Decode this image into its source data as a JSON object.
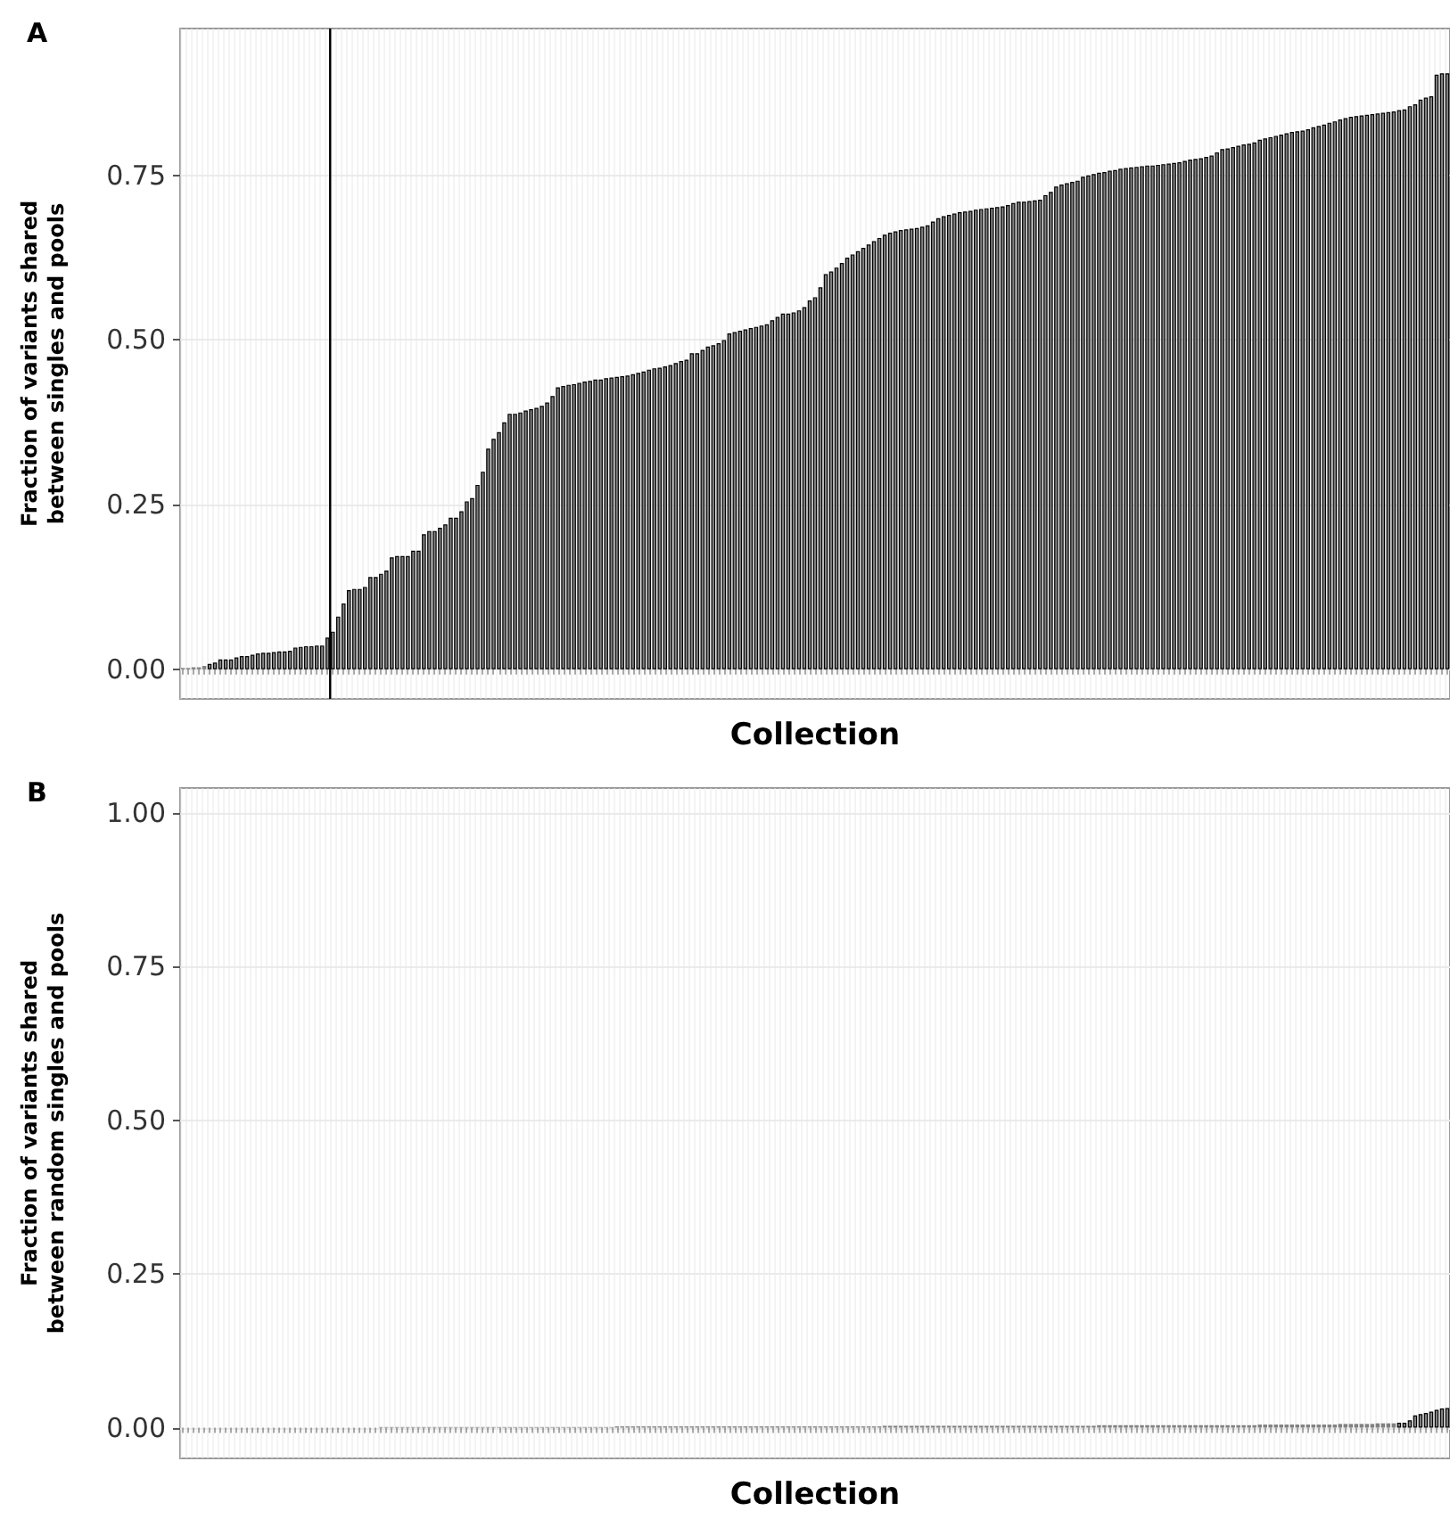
{
  "chart_data": [
    {
      "type": "bar",
      "title": "A",
      "xlabel": "Collection",
      "ylabel": "Fraction of variants shared\nbetween singles and pools",
      "categories": [
        null,
        null,
        null,
        null,
        null,
        null,
        null,
        null,
        null,
        null,
        null,
        null,
        null,
        null,
        null,
        null,
        null,
        null,
        null,
        null,
        null,
        null,
        null,
        null,
        null,
        null,
        null,
        null,
        null,
        null,
        null,
        null,
        null,
        null,
        null,
        null,
        null,
        null,
        null,
        null,
        null,
        null,
        null,
        null,
        null,
        null,
        null,
        null,
        null,
        null,
        null,
        null,
        null,
        null,
        null,
        null,
        null,
        null,
        null,
        null,
        null,
        null,
        null,
        null,
        null,
        null,
        null,
        null,
        null,
        null,
        null,
        null,
        null,
        null,
        null,
        null,
        null,
        null,
        null,
        null,
        null,
        null,
        null,
        null,
        null,
        null,
        null,
        null,
        null,
        null,
        null,
        null,
        null,
        null,
        null,
        null,
        null,
        null,
        null,
        null,
        null,
        null,
        null,
        null,
        null,
        null,
        null,
        null,
        null,
        null,
        null,
        null,
        null,
        null,
        null,
        null,
        null,
        null,
        null,
        null,
        null,
        null,
        null,
        null,
        null,
        null,
        null,
        null,
        null,
        null,
        null,
        null,
        null,
        null,
        null,
        null,
        null,
        null,
        null,
        null,
        null,
        null,
        null,
        null,
        null,
        null,
        null,
        null,
        null,
        null,
        null,
        null,
        null,
        null,
        null,
        null,
        null,
        null,
        null,
        null,
        null,
        null,
        null,
        null,
        null,
        null,
        null,
        null,
        null,
        null,
        null,
        null,
        null,
        null,
        null,
        null,
        null,
        null,
        null,
        null,
        null,
        null,
        null,
        null,
        null,
        null,
        null,
        null,
        null,
        null,
        null,
        null,
        null,
        null,
        null,
        null,
        null,
        null,
        null,
        null,
        null,
        null,
        null,
        null,
        null,
        null,
        null,
        null,
        null,
        null,
        null,
        null,
        null,
        null,
        null,
        null,
        null,
        null,
        null,
        null,
        null,
        null,
        null,
        null,
        null,
        null,
        null,
        null,
        null,
        null,
        null,
        null,
        null,
        null,
        null,
        null,
        null
      ],
      "values": [
        0.002,
        0.002,
        0.003,
        0.003,
        0.005,
        0.008,
        0.01,
        0.015,
        0.015,
        0.015,
        0.018,
        0.02,
        0.02,
        0.022,
        0.024,
        0.025,
        0.025,
        0.026,
        0.027,
        0.027,
        0.028,
        0.033,
        0.034,
        0.035,
        0.035,
        0.036,
        0.036,
        0.048,
        0.057,
        0.08,
        0.1,
        0.12,
        0.122,
        0.122,
        0.125,
        0.14,
        0.14,
        0.145,
        0.15,
        0.17,
        0.172,
        0.172,
        0.172,
        0.18,
        0.18,
        0.205,
        0.21,
        0.21,
        0.215,
        0.22,
        0.23,
        0.23,
        0.24,
        0.255,
        0.26,
        0.28,
        0.3,
        0.335,
        0.35,
        0.36,
        0.375,
        0.388,
        0.388,
        0.39,
        0.393,
        0.395,
        0.397,
        0.4,
        0.405,
        0.415,
        0.428,
        0.43,
        0.432,
        0.433,
        0.435,
        0.437,
        0.438,
        0.44,
        0.44,
        0.442,
        0.443,
        0.444,
        0.445,
        0.446,
        0.448,
        0.45,
        0.452,
        0.455,
        0.457,
        0.458,
        0.46,
        0.462,
        0.465,
        0.468,
        0.47,
        0.48,
        0.48,
        0.485,
        0.49,
        0.492,
        0.495,
        0.5,
        0.51,
        0.512,
        0.514,
        0.516,
        0.518,
        0.52,
        0.522,
        0.524,
        0.53,
        0.535,
        0.54,
        0.54,
        0.542,
        0.545,
        0.55,
        0.56,
        0.565,
        0.58,
        0.6,
        0.604,
        0.61,
        0.617,
        0.625,
        0.63,
        0.635,
        0.64,
        0.645,
        0.65,
        0.655,
        0.66,
        0.663,
        0.665,
        0.667,
        0.668,
        0.669,
        0.67,
        0.672,
        0.674,
        0.68,
        0.685,
        0.688,
        0.69,
        0.692,
        0.694,
        0.695,
        0.696,
        0.698,
        0.699,
        0.7,
        0.701,
        0.702,
        0.703,
        0.705,
        0.708,
        0.71,
        0.71,
        0.711,
        0.712,
        0.713,
        0.72,
        0.725,
        0.733,
        0.736,
        0.738,
        0.74,
        0.742,
        0.748,
        0.75,
        0.752,
        0.754,
        0.755,
        0.757,
        0.758,
        0.76,
        0.761,
        0.762,
        0.763,
        0.764,
        0.765,
        0.765,
        0.766,
        0.767,
        0.768,
        0.769,
        0.77,
        0.772,
        0.774,
        0.775,
        0.776,
        0.778,
        0.78,
        0.785,
        0.79,
        0.791,
        0.793,
        0.795,
        0.797,
        0.798,
        0.8,
        0.804,
        0.806,
        0.808,
        0.81,
        0.812,
        0.814,
        0.816,
        0.817,
        0.818,
        0.82,
        0.823,
        0.825,
        0.827,
        0.83,
        0.832,
        0.835,
        0.837,
        0.839,
        0.84,
        0.841,
        0.842,
        0.843,
        0.844,
        0.845,
        0.846,
        0.847,
        0.849,
        0.85,
        0.855,
        0.858,
        0.865,
        0.868,
        0.87,
        0.903,
        0.905,
        0.905
      ],
      "color": "#808080",
      "ylim": [
        -0.045,
        0.973
      ],
      "yticks": [
        {
          "value": 0,
          "label": "0.00"
        },
        {
          "value": 0.25,
          "label": "0.25"
        },
        {
          "value": 0.5,
          "label": "0.50"
        },
        {
          "value": 0.75,
          "label": "0.75"
        }
      ],
      "grid": true,
      "tick_labels": "y"
    },
    {
      "type": "bar",
      "title": "B",
      "xlabel": "Collection",
      "ylabel": "Fraction of variants shared\nbetween random singles and pools",
      "categories": [
        null,
        null,
        null,
        null,
        null,
        null,
        null,
        null,
        null,
        null,
        null,
        null,
        null,
        null,
        null,
        null,
        null,
        null,
        null,
        null,
        null,
        null,
        null,
        null,
        null,
        null,
        null,
        null,
        null,
        null,
        null,
        null,
        null,
        null,
        null,
        null,
        null,
        null,
        null,
        null,
        null,
        null,
        null,
        null,
        null,
        null,
        null,
        null,
        null,
        null,
        null,
        null,
        null,
        null,
        null,
        null,
        null,
        null,
        null,
        null,
        null,
        null,
        null,
        null,
        null,
        null,
        null,
        null,
        null,
        null,
        null,
        null,
        null,
        null,
        null,
        null,
        null,
        null,
        null,
        null,
        null,
        null,
        null,
        null,
        null,
        null,
        null,
        null,
        null,
        null,
        null,
        null,
        null,
        null,
        null,
        null,
        null,
        null,
        null,
        null,
        null,
        null,
        null,
        null,
        null,
        null,
        null,
        null,
        null,
        null,
        null,
        null,
        null,
        null,
        null,
        null,
        null,
        null,
        null,
        null,
        null,
        null,
        null,
        null,
        null,
        null,
        null,
        null,
        null,
        null,
        null,
        null,
        null,
        null,
        null,
        null,
        null,
        null,
        null,
        null,
        null,
        null,
        null,
        null,
        null,
        null,
        null,
        null,
        null,
        null,
        null,
        null,
        null,
        null,
        null,
        null,
        null,
        null,
        null,
        null,
        null,
        null,
        null,
        null,
        null,
        null,
        null,
        null,
        null,
        null,
        null,
        null,
        null,
        null,
        null,
        null,
        null,
        null,
        null,
        null,
        null,
        null,
        null,
        null,
        null,
        null,
        null,
        null,
        null,
        null,
        null,
        null,
        null,
        null,
        null,
        null,
        null,
        null,
        null,
        null,
        null,
        null,
        null,
        null,
        null,
        null,
        null,
        null,
        null,
        null,
        null,
        null,
        null,
        null,
        null,
        null,
        null,
        null,
        null,
        null,
        null,
        null,
        null,
        null,
        null,
        null,
        null,
        null,
        null,
        null,
        null,
        null,
        null,
        null,
        null,
        null,
        null
      ],
      "values": [
        0,
        0,
        0,
        0,
        0,
        0,
        0,
        0,
        0,
        0,
        0,
        0,
        0,
        0,
        0,
        0,
        0,
        0,
        0,
        0,
        0,
        0,
        0,
        0,
        0,
        0,
        0,
        0,
        0,
        0,
        0,
        0,
        0,
        0,
        0,
        0,
        0,
        0.001,
        0.001,
        0.001,
        0.001,
        0.001,
        0.001,
        0.001,
        0.001,
        0.001,
        0.001,
        0.001,
        0.001,
        0.001,
        0.001,
        0.001,
        0.001,
        0.001,
        0.001,
        0.001,
        0.001,
        0.001,
        0.001,
        0.001,
        0.001,
        0.001,
        0.001,
        0.001,
        0.001,
        0.001,
        0.001,
        0.001,
        0.001,
        0.001,
        0.001,
        0.001,
        0.001,
        0.001,
        0.001,
        0.001,
        0.001,
        0.001,
        0.001,
        0.001,
        0.001,
        0.002,
        0.002,
        0.002,
        0.002,
        0.002,
        0.002,
        0.002,
        0.002,
        0.002,
        0.002,
        0.002,
        0.002,
        0.002,
        0.002,
        0.002,
        0.002,
        0.002,
        0.002,
        0.002,
        0.002,
        0.002,
        0.002,
        0.002,
        0.002,
        0.002,
        0.002,
        0.002,
        0.002,
        0.002,
        0.002,
        0.002,
        0.002,
        0.002,
        0.002,
        0.002,
        0.002,
        0.002,
        0.002,
        0.002,
        0.002,
        0.002,
        0.002,
        0.002,
        0.002,
        0.002,
        0.002,
        0.002,
        0.002,
        0.002,
        0.002,
        0.003,
        0.003,
        0.003,
        0.003,
        0.003,
        0.003,
        0.003,
        0.003,
        0.003,
        0.003,
        0.003,
        0.003,
        0.003,
        0.003,
        0.003,
        0.003,
        0.003,
        0.003,
        0.003,
        0.003,
        0.003,
        0.003,
        0.003,
        0.003,
        0.003,
        0.003,
        0.003,
        0.003,
        0.003,
        0.003,
        0.003,
        0.003,
        0.003,
        0.003,
        0.003,
        0.003,
        0.003,
        0.003,
        0.003,
        0.003,
        0.004,
        0.004,
        0.004,
        0.004,
        0.004,
        0.004,
        0.004,
        0.004,
        0.004,
        0.004,
        0.004,
        0.004,
        0.004,
        0.004,
        0.004,
        0.004,
        0.004,
        0.004,
        0.004,
        0.004,
        0.004,
        0.004,
        0.004,
        0.004,
        0.004,
        0.004,
        0.004,
        0.004,
        0.004,
        0.004,
        0.005,
        0.005,
        0.005,
        0.005,
        0.005,
        0.005,
        0.005,
        0.005,
        0.005,
        0.005,
        0.005,
        0.005,
        0.005,
        0.005,
        0.005,
        0.006,
        0.006,
        0.006,
        0.006,
        0.006,
        0.006,
        0.006,
        0.007,
        0.007,
        0.007,
        0.007,
        0.008,
        0.008,
        0.012,
        0.02,
        0.022,
        0.024,
        0.026,
        0.029,
        0.031,
        0.032
      ],
      "color": "#808080",
      "ylim": [
        -0.05,
        1.04
      ],
      "yticks": [
        {
          "value": 0,
          "label": "0.00"
        },
        {
          "value": 0.25,
          "label": "0.25"
        },
        {
          "value": 0.5,
          "label": "0.50"
        },
        {
          "value": 0.75,
          "label": "0.75"
        },
        {
          "value": 1,
          "label": "1.00"
        }
      ],
      "grid": true,
      "tick_labels": "y"
    }
  ]
}
